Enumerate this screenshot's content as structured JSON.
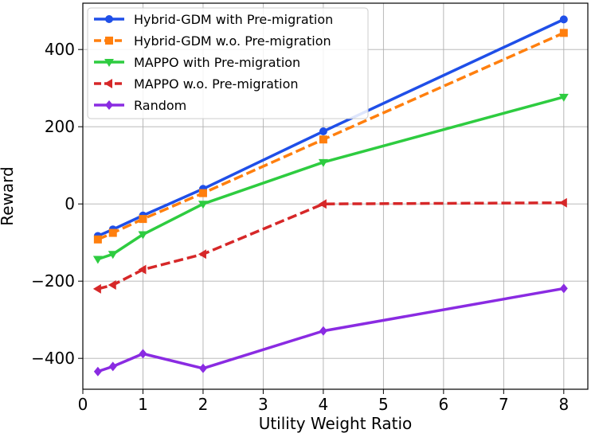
{
  "chart_data": {
    "type": "line",
    "title": "",
    "xlabel": "Utility Weight Ratio",
    "ylabel": "Reward",
    "xlim": [
      0,
      8.4
    ],
    "ylim": [
      -480,
      520
    ],
    "x_ticks": [
      0,
      1,
      2,
      3,
      4,
      5,
      6,
      7,
      8
    ],
    "y_ticks": [
      -400,
      -200,
      0,
      200,
      400
    ],
    "grid": true,
    "legend_position": "top-left",
    "x": [
      0.25,
      0.5,
      1,
      2,
      4,
      8
    ],
    "series": [
      {
        "name": "Hybrid-GDM with Pre-migration",
        "values": [
          -83,
          -66,
          -30,
          39,
          188,
          478
        ],
        "color": "#1f4fe8",
        "linestyle": "solid",
        "marker": "circle"
      },
      {
        "name": "Hybrid-GDM w.o. Pre-migration",
        "values": [
          -92,
          -75,
          -39,
          28,
          167,
          443
        ],
        "color": "#ff7f0e",
        "linestyle": "dashed",
        "marker": "square"
      },
      {
        "name": "MAPPO with Pre-migration",
        "values": [
          -143,
          -130,
          -79,
          0,
          108,
          277
        ],
        "color": "#2ecc40",
        "linestyle": "solid",
        "marker": "triangle-down"
      },
      {
        "name": "MAPPO w.o. Pre-migration",
        "values": [
          -220,
          -210,
          -170,
          -130,
          0,
          3
        ],
        "color": "#d62728",
        "linestyle": "dashed",
        "marker": "triangle-left"
      },
      {
        "name": "Random",
        "values": [
          -434,
          -421,
          -388,
          -426,
          -329,
          -219
        ],
        "color": "#8a2be2",
        "linestyle": "solid",
        "marker": "diamond"
      }
    ]
  }
}
